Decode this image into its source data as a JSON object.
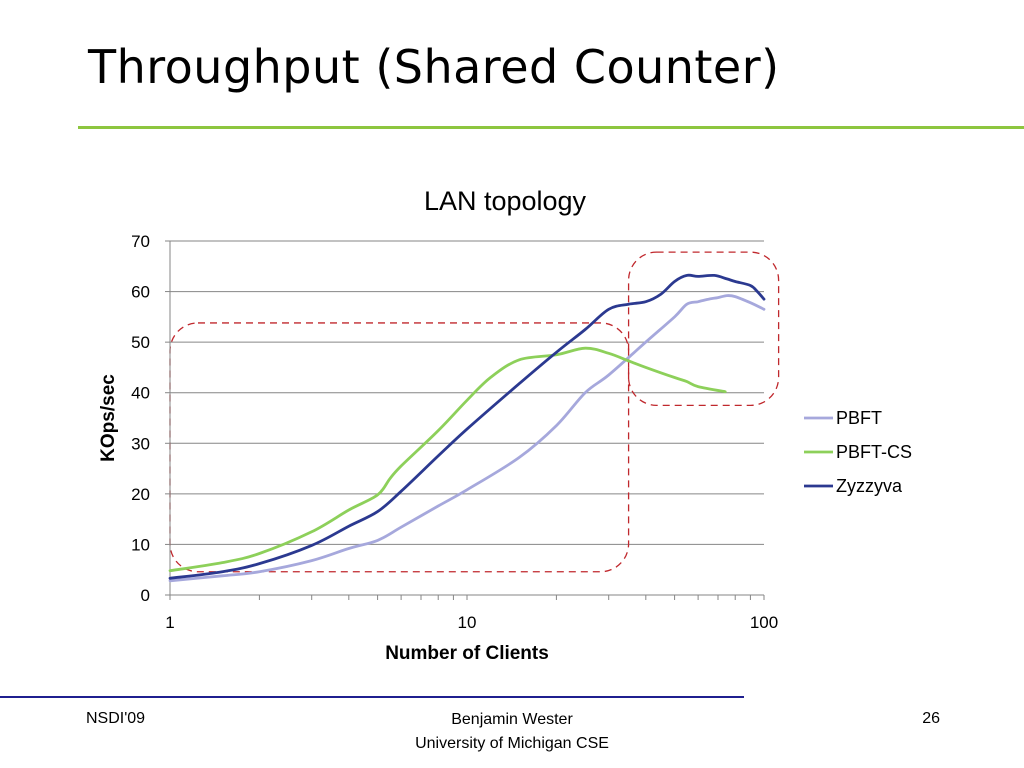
{
  "slide": {
    "title": "Throughput (Shared Counter)"
  },
  "footer": {
    "left": "NSDI'09",
    "center_line1": "Benjamin Wester",
    "center_line2": "University of Michigan CSE",
    "page_number": "26"
  },
  "colors": {
    "title_rule": "#8dc63f",
    "footer_rule": "#1f1f8f",
    "highlight_box": "#c0282d"
  },
  "chart_data": {
    "type": "line",
    "title": "LAN topology",
    "xlabel": "Number of Clients",
    "ylabel": "KOps/sec",
    "x_scale": "log",
    "xlim": [
      1,
      100
    ],
    "ylim": [
      0,
      70
    ],
    "x_ticks": [
      1,
      10,
      100
    ],
    "y_ticks": [
      0,
      10,
      20,
      30,
      40,
      50,
      60,
      70
    ],
    "grid": "horizontal",
    "legend_position": "right",
    "series": [
      {
        "name": "PBFT",
        "color": "#a6a8dc",
        "points": [
          [
            1,
            2.8
          ],
          [
            1.5,
            3.8
          ],
          [
            2,
            4.6
          ],
          [
            3,
            6.8
          ],
          [
            4,
            9.2
          ],
          [
            5,
            10.8
          ],
          [
            6,
            13.4
          ],
          [
            8,
            17.6
          ],
          [
            10,
            20.8
          ],
          [
            15,
            27.2
          ],
          [
            20,
            33.5
          ],
          [
            25,
            40.0
          ],
          [
            30,
            43.5
          ],
          [
            40,
            50.0
          ],
          [
            50,
            55.0
          ],
          [
            55,
            57.5
          ],
          [
            60,
            58.0
          ],
          [
            65,
            58.5
          ],
          [
            70,
            58.8
          ],
          [
            75,
            59.2
          ],
          [
            80,
            59.0
          ],
          [
            90,
            57.8
          ],
          [
            100,
            56.5
          ]
        ]
      },
      {
        "name": "PBFT-CS",
        "color": "#8dd05a",
        "points": [
          [
            1,
            4.8
          ],
          [
            1.5,
            6.4
          ],
          [
            2,
            8.2
          ],
          [
            3,
            12.5
          ],
          [
            4,
            16.8
          ],
          [
            5,
            19.8
          ],
          [
            5.5,
            23.0
          ],
          [
            6,
            25.5
          ],
          [
            8,
            32.5
          ],
          [
            10,
            38.5
          ],
          [
            12,
            43.0
          ],
          [
            15,
            46.5
          ],
          [
            20,
            47.5
          ],
          [
            25,
            48.8
          ],
          [
            30,
            47.8
          ],
          [
            35,
            46.3
          ],
          [
            40,
            45.0
          ],
          [
            50,
            43.0
          ],
          [
            55,
            42.2
          ],
          [
            60,
            41.2
          ],
          [
            74,
            40.2
          ]
        ]
      },
      {
        "name": "Zyzzyva",
        "color": "#2b3990",
        "points": [
          [
            1,
            3.3
          ],
          [
            1.5,
            4.6
          ],
          [
            2,
            6.2
          ],
          [
            3,
            9.8
          ],
          [
            4,
            13.6
          ],
          [
            5,
            16.5
          ],
          [
            6,
            20.5
          ],
          [
            8,
            27.5
          ],
          [
            10,
            32.8
          ],
          [
            15,
            41.8
          ],
          [
            20,
            48.0
          ],
          [
            25,
            52.5
          ],
          [
            30,
            56.5
          ],
          [
            35,
            57.5
          ],
          [
            40,
            58.0
          ],
          [
            45,
            59.5
          ],
          [
            50,
            62.0
          ],
          [
            55,
            63.2
          ],
          [
            60,
            63.0
          ],
          [
            68,
            63.2
          ],
          [
            75,
            62.5
          ],
          [
            80,
            62.0
          ],
          [
            90,
            61.2
          ],
          [
            95,
            60.0
          ],
          [
            100,
            58.5
          ]
        ]
      }
    ]
  }
}
